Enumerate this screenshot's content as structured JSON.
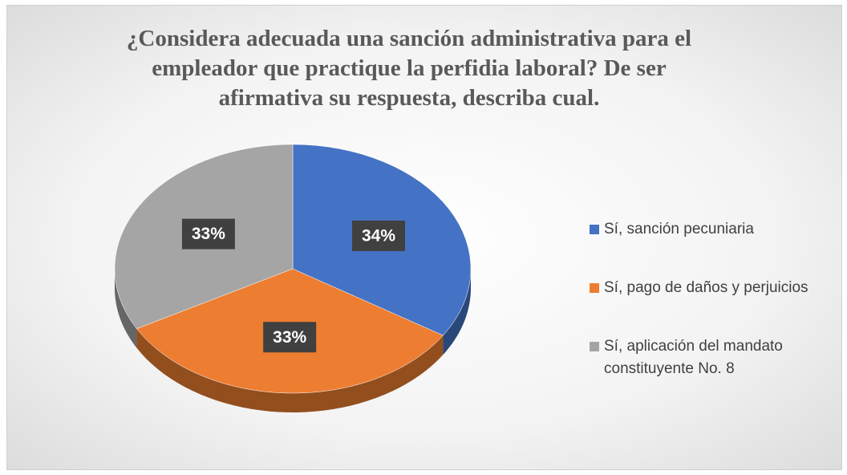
{
  "chart_data": {
    "type": "pie",
    "title": "¿Considera adecuada una sanción administrativa para el empleador que practique la perfidia laboral? De ser afirmativa su respuesta, describa cual.",
    "categories": [
      "Sí, sanción pecuniaria",
      "Sí, pago de daños y perjuicios",
      "Sí, aplicación del mandato constituyente No. 8"
    ],
    "values": [
      34,
      33,
      33
    ],
    "value_labels": [
      "34%",
      "33%",
      "33%"
    ],
    "colors": [
      "#4472c4",
      "#ed7d31",
      "#a5a5a5"
    ],
    "legend": "right"
  }
}
